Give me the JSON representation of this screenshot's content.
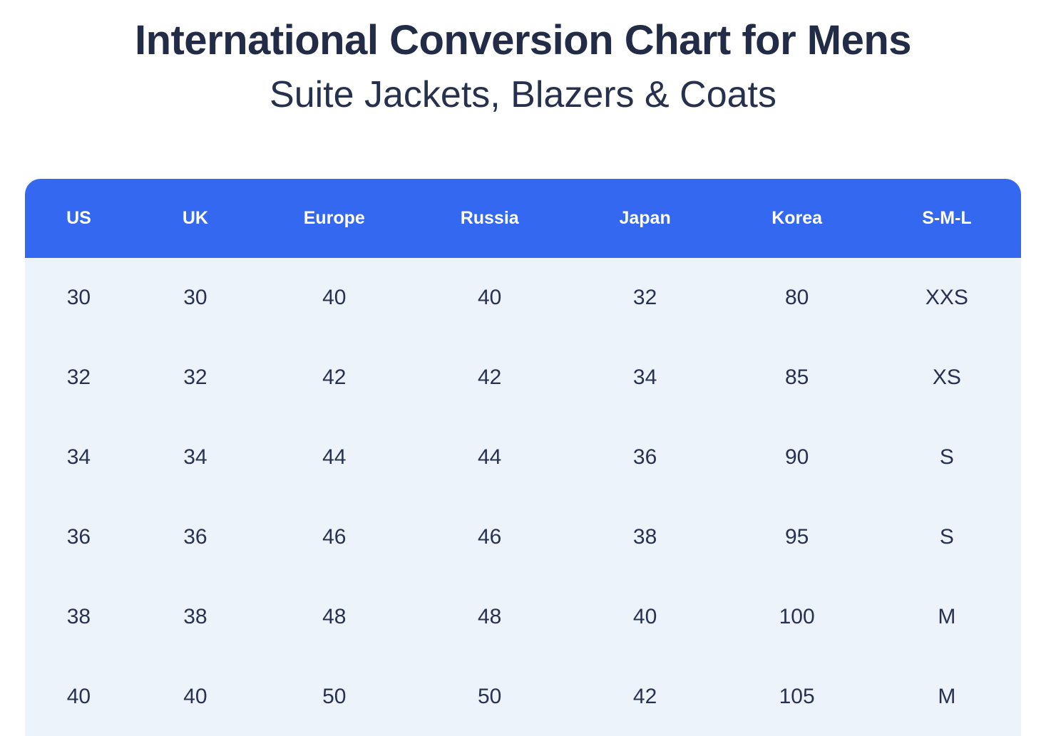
{
  "header": {
    "title": "International Conversion Chart for Mens",
    "subtitle": "Suite Jackets, Blazers & Coats"
  },
  "chart_data": {
    "type": "table",
    "title": "International Conversion Chart for Mens",
    "subtitle": "Suite Jackets, Blazers & Coats",
    "columns": [
      "US",
      "UK",
      "Europe",
      "Russia",
      "Japan",
      "Korea",
      "S-M-L"
    ],
    "rows": [
      [
        "30",
        "30",
        "40",
        "40",
        "32",
        "80",
        "XXS"
      ],
      [
        "32",
        "32",
        "42",
        "42",
        "34",
        "85",
        "XS"
      ],
      [
        "34",
        "34",
        "44",
        "44",
        "36",
        "90",
        "S"
      ],
      [
        "36",
        "36",
        "46",
        "46",
        "38",
        "95",
        "S"
      ],
      [
        "38",
        "38",
        "48",
        "48",
        "40",
        "100",
        "M"
      ],
      [
        "40",
        "40",
        "50",
        "50",
        "42",
        "105",
        "M"
      ]
    ]
  },
  "colors": {
    "header_bg": "#3568f0",
    "header_text": "#ffffff",
    "body_bg": "#edf3fb",
    "title_text": "#232c47",
    "cell_text": "#273250",
    "page_bg": "#ffffff"
  }
}
